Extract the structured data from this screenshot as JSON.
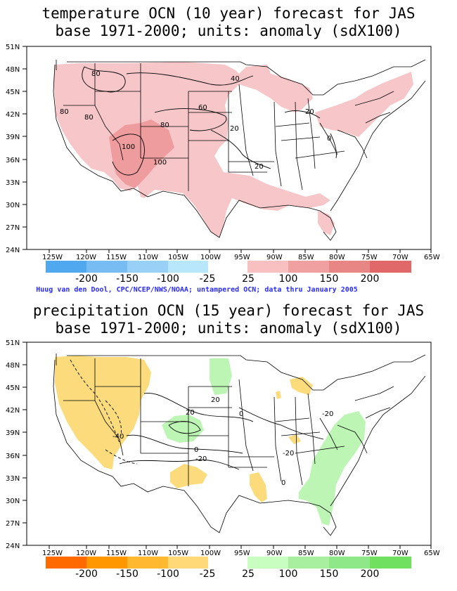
{
  "temperature_map": {
    "title_line1": "temperature OCN (10 year) forecast for JAS",
    "title_line2": "base 1971-2000; units: anomaly (sdX100)",
    "lat_labels": [
      "51N",
      "48N",
      "45N",
      "42N",
      "39N",
      "36N",
      "33N",
      "30N",
      "27N",
      "24N"
    ],
    "lon_labels": [
      "125W",
      "120W",
      "115W",
      "110W",
      "105W",
      "100W",
      "95W",
      "90W",
      "85W",
      "80W",
      "75W",
      "70W",
      "65W"
    ],
    "contour_labels": [
      "80",
      "40",
      "80",
      "80",
      "60",
      "20",
      "20",
      "80",
      "100",
      "0",
      "100",
      "20"
    ],
    "legend_labels": [
      "-200",
      "-150",
      "-100",
      "-25",
      "25",
      "100",
      "150",
      "200"
    ],
    "legend_colors_negative": [
      "#50a8ee",
      "#78bcf4",
      "#98d0f8",
      "#b8e6fa"
    ],
    "legend_colors_positive": [
      "#f8c0c0",
      "#f0a0a0",
      "#e88686",
      "#e06868"
    ],
    "anomaly_color": "#f7c6c8",
    "anomaly_color_strong": "#ef9c9e"
  },
  "credit_line": "Huug van den Dool, CPC/NCEP/NWS/NOAA; untampered OCN; data thru January 2005",
  "precipitation_map": {
    "title_line1": "precipitation OCN (15 year) forecast for JAS",
    "title_line2": "base 1971-2000; units: anomaly (sdX100)",
    "lat_labels": [
      "51N",
      "48N",
      "45N",
      "42N",
      "39N",
      "36N",
      "33N",
      "30N",
      "27N",
      "24N"
    ],
    "lon_labels": [
      "125W",
      "120W",
      "115W",
      "110W",
      "105W",
      "100W",
      "95W",
      "90W",
      "85W",
      "80W",
      "75W",
      "70W",
      "65W"
    ],
    "contour_labels": [
      "20",
      "-20",
      "0",
      "20",
      "-40",
      "0",
      "-20",
      "-20",
      "0"
    ],
    "legend_labels": [
      "-200",
      "-150",
      "-100",
      "-25",
      "25",
      "100",
      "150",
      "200"
    ],
    "legend_colors_negative": [
      "#ff6a00",
      "#ff9800",
      "#ffb830",
      "#ffd878"
    ],
    "legend_colors_positive": [
      "#c8ffc0",
      "#a8f0a0",
      "#8ee888",
      "#70e060"
    ],
    "dry_color": "#fbdb7c",
    "wet_color": "#bdf5b5"
  }
}
